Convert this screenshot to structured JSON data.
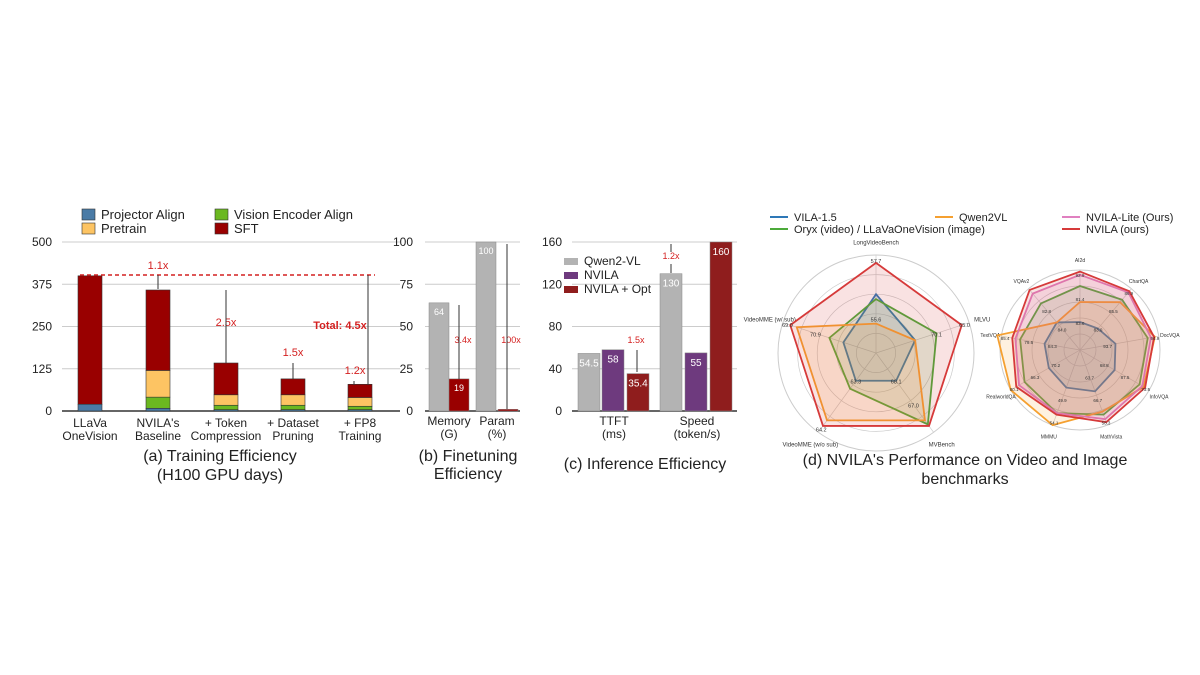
{
  "chart_data": [
    {
      "type": "bar",
      "stacked": true,
      "title": "(a) Training Efficiency",
      "subtitle": "(H100 GPU days)",
      "categories": [
        "LLaVa\nOneVision",
        "NVILA's\nBaseline",
        "+ Token\nCompression",
        "+ Dataset\nPruning",
        "+ FP8\nTraining"
      ],
      "ylim": [
        0,
        500
      ],
      "yticks": [
        0,
        125,
        250,
        375,
        500
      ],
      "grid": true,
      "series": [
        {
          "name": "Projector Align",
          "color": "#4a7ba6",
          "values": [
            20,
            8,
            4,
            4,
            4
          ]
        },
        {
          "name": "Vision Encoder Align",
          "color": "#6bb820",
          "values": [
            0,
            33,
            13,
            13,
            10
          ]
        },
        {
          "name": "Pretrain",
          "color": "#fdc463",
          "values": [
            0,
            79,
            31,
            31,
            26
          ]
        },
        {
          "name": "SFT",
          "color": "#990000",
          "values": [
            380,
            238,
            94,
            47,
            39
          ]
        }
      ],
      "annotations": [
        "1.1x",
        "2.5x",
        "1.5x",
        "1.2x",
        "Total: 4.5x"
      ]
    },
    {
      "type": "bar",
      "title": "(b) Finetuning",
      "subtitle": "Efficiency",
      "categories": [
        "Memory\n(G)",
        "Param\n(%)"
      ],
      "ylim": [
        0,
        100
      ],
      "yticks": [
        0,
        25,
        50,
        75,
        100
      ],
      "series": [
        {
          "color": "#b3b3b3",
          "values": [
            64,
            100
          ],
          "labels": [
            "64",
            "100"
          ]
        },
        {
          "color": "#990000",
          "values": [
            19,
            1
          ],
          "labels": [
            "19",
            ""
          ]
        }
      ],
      "annotations": [
        "3.4x",
        "100x"
      ]
    },
    {
      "type": "bar",
      "title": "(c) Inference Efficiency",
      "categories": [
        "TTFT\n(ms)",
        "Speed\n(token/s)"
      ],
      "ylim": [
        0,
        160
      ],
      "yticks": [
        0,
        40,
        80,
        120,
        160
      ],
      "legend": "top-left",
      "series": [
        {
          "name": "Qwen2-VL",
          "color": "#b3b3b3",
          "values": [
            54.5,
            130
          ]
        },
        {
          "name": "NVILA",
          "color": "#6e3a7e",
          "values": [
            58,
            55
          ]
        },
        {
          "name": "NVILA + Opt",
          "color": "#8f1d1d",
          "values": [
            35.4,
            160
          ]
        }
      ],
      "annotations": [
        "1.5x",
        "1.2x"
      ]
    },
    {
      "type": "radar",
      "title": "(d) NVILA's Performance on Video and Image",
      "subtitle": "benchmarks",
      "legend": "top",
      "legend_entries": [
        {
          "name": "VILA-1.5",
          "color": "#2e78b7"
        },
        {
          "name": "Oryx (video) / LLaVaOneVision (image)",
          "color": "#4caa3a"
        },
        {
          "name": "Qwen2VL",
          "color": "#f5a030"
        },
        {
          "name": "NVILA-Lite (Ours)",
          "color": "#e080c0"
        },
        {
          "name": "NVILA (ours)",
          "color": "#d63a3a"
        }
      ],
      "video": {
        "axes": [
          "LongVideoBench",
          "MLVU",
          "MVBench",
          "VideoMME (w/o sub)",
          "VideoMME (w/ sub)"
        ],
        "value_labels": [
          "57.7",
          "55.6",
          "70.1",
          "65.0",
          "68.1",
          "67.0",
          "64.2",
          "63.3",
          "70.9",
          "69.0"
        ],
        "series": [
          {
            "name": "VILA-1.5",
            "values": [
              0.6,
              0.42,
              0.35,
              0.35,
              0.35
            ]
          },
          {
            "name": "Oryx (video) / LLaVaOneVision (image)",
            "values": [
              0.55,
              0.65,
              0.9,
              0.45,
              0.5
            ]
          },
          {
            "name": "Qwen2VL",
            "values": [
              0.3,
              0.42,
              0.85,
              0.85,
              0.85
            ]
          },
          {
            "name": "NVILA (ours)",
            "values": [
              0.92,
              0.92,
              0.92,
              0.92,
              0.92
            ]
          }
        ]
      },
      "image": {
        "axes": [
          "AI2d",
          "ChartQA",
          "DocVQA",
          "InfoVQA",
          "MathVista",
          "MMMU",
          "RealworldQA",
          "TextVQA",
          "VQAv2"
        ],
        "value_labels": [
          "92.9",
          "83.0",
          "81.4",
          "86.9",
          "83.0",
          "85.5",
          "94.9",
          "93.7",
          "87.5",
          "73.5",
          "68.8",
          "66.7",
          "58.3",
          "63.7",
          "49.9",
          "54.1",
          "70.2",
          "66.3",
          "80.1",
          "84.3",
          "79.6",
          "85.4",
          "84.0",
          "82.8"
        ],
        "series": [
          {
            "name": "VILA-1.5",
            "values": [
              0.35,
              0.35,
              0.45,
              0.5,
              0.55,
              0.5,
              0.45,
              0.45,
              0.45
            ]
          },
          {
            "name": "Oryx (video) / LLaVaOneVision (image)",
            "values": [
              0.8,
              0.82,
              0.86,
              0.86,
              0.86,
              0.84,
              0.8,
              0.76,
              0.76
            ]
          },
          {
            "name": "Qwen2VL",
            "values": [
              0.6,
              0.78,
              0.95,
              0.92,
              0.82,
              1.0,
              1.0,
              1.05,
              0.45
            ]
          },
          {
            "name": "NVILA-Lite (Ours)",
            "values": [
              0.94,
              0.94,
              0.9,
              0.9,
              0.92,
              0.84,
              0.88,
              0.82,
              0.92
            ]
          },
          {
            "name": "NVILA (ours)",
            "values": [
              0.98,
              0.96,
              0.94,
              0.94,
              0.96,
              0.86,
              0.92,
              0.86,
              0.98
            ]
          }
        ]
      }
    }
  ]
}
